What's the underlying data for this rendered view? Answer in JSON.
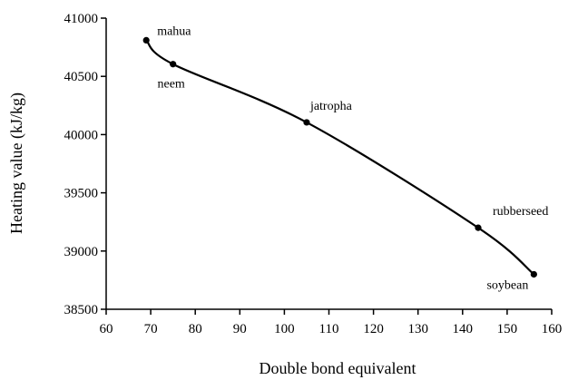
{
  "chart_data": {
    "type": "line",
    "xlabel": "Double bond equivalent",
    "ylabel": "Heating value (kJ/kg)",
    "xlim": [
      60,
      160
    ],
    "ylim": [
      38500,
      41000
    ],
    "xticks": [
      60,
      70,
      80,
      90,
      100,
      110,
      120,
      130,
      140,
      150,
      160
    ],
    "yticks": [
      38500,
      39000,
      39500,
      40000,
      40500,
      41000
    ],
    "grid": false,
    "legend": "none",
    "line_color": "#000000",
    "series": [
      {
        "points": [
          {
            "label": "mahua",
            "x": 69,
            "y": 40810
          },
          {
            "label": "neem",
            "x": 75,
            "y": 40605
          },
          {
            "label": "jatropha",
            "x": 105,
            "y": 40105
          },
          {
            "label": "rubberseed",
            "x": 143.5,
            "y": 39200
          },
          {
            "label": "soybean",
            "x": 156,
            "y": 38800
          }
        ]
      }
    ]
  }
}
